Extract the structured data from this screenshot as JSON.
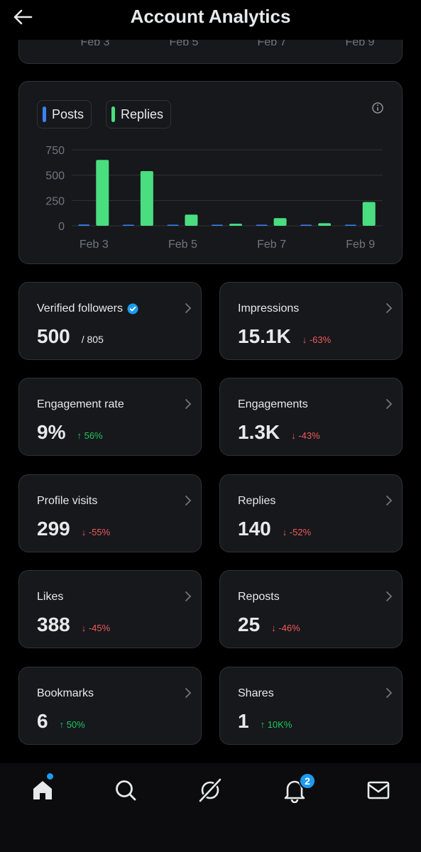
{
  "header": {
    "title": "Account Analytics",
    "back_icon": "arrow-left-icon"
  },
  "top_chart": {
    "tick_labels": [
      "Feb 3",
      "Feb 5",
      "Feb 7",
      "Feb 9"
    ]
  },
  "legend": {
    "posts_label": "Posts",
    "replies_label": "Replies"
  },
  "colors": {
    "posts": "#3b82f6",
    "replies": "#4ade80",
    "accent": "#1d9bf0",
    "up": "#22c55e",
    "down": "#f15a5a"
  },
  "chart_data": {
    "type": "bar",
    "categories": [
      "Feb 3",
      "Feb 4",
      "Feb 5",
      "Feb 6",
      "Feb 7",
      "Feb 8",
      "Feb 9"
    ],
    "x_tick_labels": [
      "Feb 3",
      "Feb 5",
      "Feb 7",
      "Feb 9"
    ],
    "series": [
      {
        "name": "Posts",
        "values": [
          12,
          10,
          3,
          2,
          5,
          4,
          8
        ]
      },
      {
        "name": "Replies",
        "values": [
          650,
          540,
          110,
          20,
          75,
          25,
          235
        ]
      }
    ],
    "y_ticks": [
      "750",
      "500",
      "250",
      "0"
    ],
    "ylim": [
      0,
      750
    ],
    "grid": true,
    "legend": "top-left"
  },
  "stats": [
    {
      "label": "Verified followers",
      "value": "500",
      "sub": "/ 805",
      "verified": true
    },
    {
      "label": "Impressions",
      "value": "15.1K",
      "change": "-63%",
      "direction": "down"
    },
    {
      "label": "Engagement rate",
      "value": "9%",
      "change": "56%",
      "direction": "up"
    },
    {
      "label": "Engagements",
      "value": "1.3K",
      "change": "-43%",
      "direction": "down"
    },
    {
      "label": "Profile visits",
      "value": "299",
      "change": "-55%",
      "direction": "down"
    },
    {
      "label": "Replies",
      "value": "140",
      "change": "-52%",
      "direction": "down"
    },
    {
      "label": "Likes",
      "value": "388",
      "change": "-45%",
      "direction": "down"
    },
    {
      "label": "Reposts",
      "value": "25",
      "change": "-46%",
      "direction": "down"
    },
    {
      "label": "Bookmarks",
      "value": "6",
      "change": "50%",
      "direction": "up"
    },
    {
      "label": "Shares",
      "value": "1",
      "change": "10K%",
      "direction": "up"
    }
  ],
  "nav": {
    "items": [
      "home-icon",
      "search-icon",
      "grok-icon",
      "bell-icon",
      "mail-icon"
    ],
    "notifications_badge": "2"
  }
}
